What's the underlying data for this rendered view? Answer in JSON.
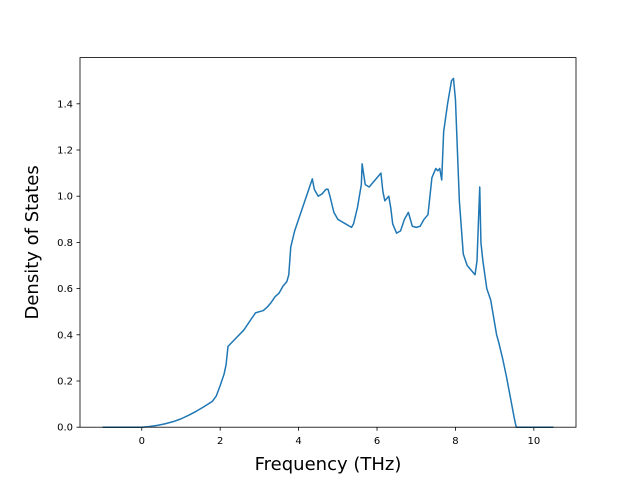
{
  "chart_data": {
    "type": "line",
    "title": "",
    "xlabel": "Frequency (THz)",
    "ylabel": "Density of States",
    "xlim": [
      -1.575,
      11.075
    ],
    "ylim": [
      0.0,
      1.6
    ],
    "xticks": [
      0,
      2,
      4,
      6,
      8,
      10
    ],
    "yticks": [
      0.0,
      0.2,
      0.4,
      0.6,
      0.8,
      1.0,
      1.2,
      1.4
    ],
    "grid": false,
    "line_color": "#1f77b4",
    "series": [
      {
        "x": [
          -1.0,
          -0.5,
          0.0,
          0.2,
          0.4,
          0.6,
          0.8,
          1.0,
          1.2,
          1.4,
          1.6,
          1.8,
          1.9,
          2.0,
          2.1,
          2.15,
          2.2,
          2.4,
          2.6,
          2.8,
          2.9,
          3.0,
          3.1,
          3.2,
          3.3,
          3.4,
          3.5,
          3.6,
          3.7,
          3.75,
          3.8,
          3.9,
          4.0,
          4.1,
          4.2,
          4.3,
          4.35,
          4.4,
          4.5,
          4.6,
          4.7,
          4.75,
          4.8,
          4.9,
          5.0,
          5.1,
          5.2,
          5.3,
          5.35,
          5.4,
          5.5,
          5.6,
          5.62,
          5.7,
          5.8,
          5.9,
          6.0,
          6.1,
          6.15,
          6.2,
          6.3,
          6.35,
          6.4,
          6.5,
          6.6,
          6.7,
          6.8,
          6.9,
          7.0,
          7.1,
          7.2,
          7.3,
          7.4,
          7.5,
          7.55,
          7.6,
          7.65,
          7.7,
          7.75,
          7.8,
          7.9,
          7.95,
          8.0,
          8.1,
          8.2,
          8.3,
          8.4,
          8.5,
          8.55,
          8.6,
          8.62,
          8.65,
          8.7,
          8.8,
          8.9,
          9.0,
          9.05,
          9.1,
          9.2,
          9.3,
          9.4,
          9.5,
          9.55,
          9.6,
          9.8,
          10.0,
          10.2,
          10.5
        ],
        "y": [
          0.0,
          0.0,
          0.0,
          0.003,
          0.008,
          0.015,
          0.024,
          0.036,
          0.052,
          0.07,
          0.09,
          0.112,
          0.135,
          0.18,
          0.23,
          0.27,
          0.35,
          0.385,
          0.42,
          0.47,
          0.495,
          0.5,
          0.505,
          0.52,
          0.54,
          0.565,
          0.58,
          0.61,
          0.63,
          0.66,
          0.78,
          0.85,
          0.9,
          0.95,
          1.0,
          1.05,
          1.075,
          1.03,
          1.0,
          1.01,
          1.03,
          1.03,
          1.0,
          0.93,
          0.9,
          0.89,
          0.88,
          0.87,
          0.865,
          0.88,
          0.95,
          1.05,
          1.14,
          1.05,
          1.04,
          1.06,
          1.08,
          1.1,
          1.02,
          0.98,
          1.0,
          0.95,
          0.88,
          0.84,
          0.85,
          0.9,
          0.93,
          0.87,
          0.865,
          0.87,
          0.9,
          0.92,
          1.08,
          1.12,
          1.11,
          1.12,
          1.07,
          1.28,
          1.34,
          1.4,
          1.5,
          1.51,
          1.42,
          0.98,
          0.75,
          0.7,
          0.68,
          0.66,
          0.72,
          0.95,
          1.04,
          0.8,
          0.72,
          0.6,
          0.55,
          0.45,
          0.4,
          0.37,
          0.3,
          0.22,
          0.13,
          0.04,
          0.0,
          0.0,
          0.0,
          0.0,
          0.0,
          0.0
        ]
      }
    ]
  }
}
